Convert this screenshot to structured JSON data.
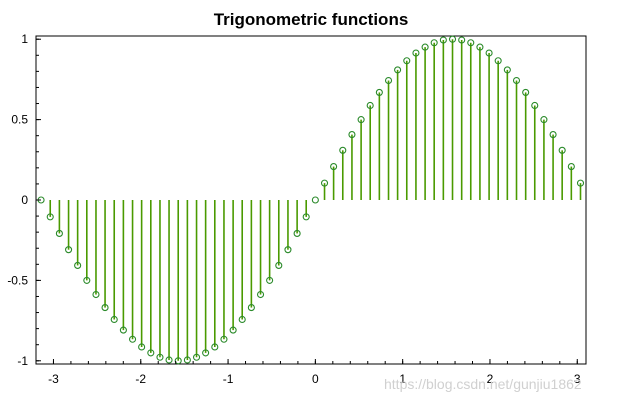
{
  "chart_data": {
    "type": "stem",
    "title": "Trigonometric functions",
    "xlabel": "",
    "ylabel": "",
    "xlim": [
      -3.2,
      3.1
    ],
    "ylim": [
      -1.02,
      1.02
    ],
    "xticks": [
      -3,
      -2,
      -1,
      0,
      1,
      2,
      3
    ],
    "xtick_labels": [
      "-3",
      "-2",
      "-1",
      "0",
      "1",
      "2",
      "3"
    ],
    "yticks": [
      -1,
      -0.5,
      0,
      0.5,
      1
    ],
    "ytick_labels": [
      "-1",
      "-0.5",
      "0",
      "0.5",
      "1"
    ],
    "grid": false,
    "legend": "none",
    "series": [
      {
        "function": "sin",
        "x": [
          -3.142,
          -3.037,
          -2.932,
          -2.827,
          -2.723,
          -2.618,
          -2.513,
          -2.409,
          -2.304,
          -2.199,
          -2.094,
          -1.99,
          -1.885,
          -1.78,
          -1.676,
          -1.571,
          -1.466,
          -1.361,
          -1.257,
          -1.152,
          -1.047,
          -0.942,
          -0.838,
          -0.733,
          -0.628,
          -0.524,
          -0.419,
          -0.314,
          -0.209,
          -0.105,
          0.0,
          0.105,
          0.209,
          0.314,
          0.419,
          0.524,
          0.628,
          0.733,
          0.838,
          0.942,
          1.047,
          1.152,
          1.257,
          1.361,
          1.466,
          1.571,
          1.676,
          1.78,
          1.885,
          1.99,
          2.094,
          2.199,
          2.304,
          2.409,
          2.513,
          2.618,
          2.723,
          2.827,
          2.932,
          3.037
        ],
        "y": [
          0.0,
          -0.105,
          -0.208,
          -0.309,
          -0.407,
          -0.5,
          -0.588,
          -0.669,
          -0.743,
          -0.809,
          -0.866,
          -0.914,
          -0.951,
          -0.978,
          -0.995,
          -1.0,
          -0.995,
          -0.978,
          -0.951,
          -0.914,
          -0.866,
          -0.809,
          -0.743,
          -0.669,
          -0.588,
          -0.5,
          -0.407,
          -0.309,
          -0.208,
          -0.105,
          0.0,
          0.105,
          0.208,
          0.309,
          0.407,
          0.5,
          0.588,
          0.669,
          0.743,
          0.809,
          0.866,
          0.914,
          0.951,
          0.978,
          0.995,
          1.0,
          0.995,
          0.978,
          0.951,
          0.914,
          0.866,
          0.809,
          0.743,
          0.669,
          0.588,
          0.5,
          0.407,
          0.309,
          0.208,
          0.105
        ],
        "color": "#4a9a00",
        "marker_color": "#2a8a2a",
        "marker": "open-circle"
      }
    ]
  },
  "watermark": "https://blog.csdn.net/gunjiu1862"
}
